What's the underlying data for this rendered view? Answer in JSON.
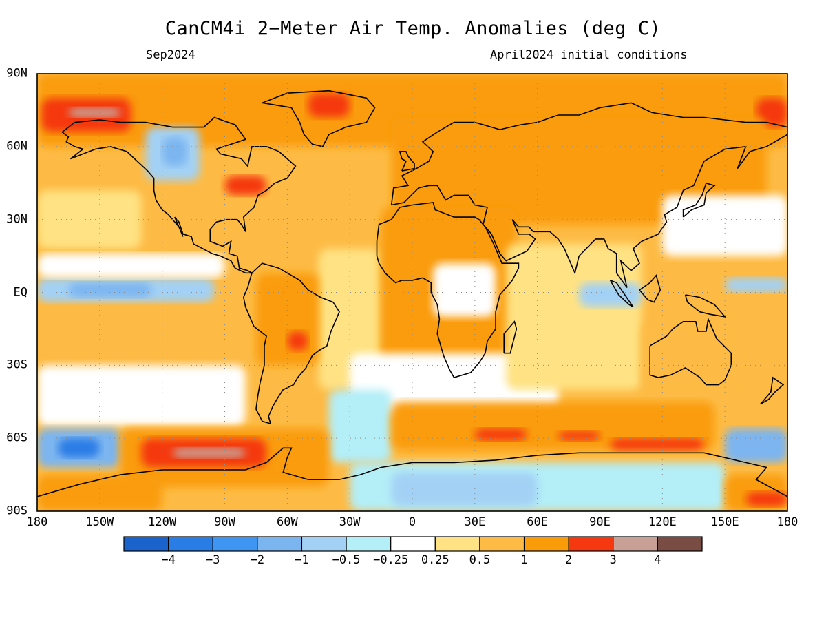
{
  "title": "CanCM4i 2−Meter Air Temp. Anomalies (deg C)",
  "subtitle_left": "Sep2024",
  "subtitle_right": "April2024 initial conditions",
  "lat_ticks": [
    "90N",
    "60N",
    "30N",
    "EQ",
    "30S",
    "60S",
    "90S"
  ],
  "lon_ticks": [
    "180",
    "150W",
    "120W",
    "90W",
    "60W",
    "30W",
    "0",
    "30E",
    "60E",
    "90E",
    "120E",
    "150E",
    "180"
  ],
  "colorbar": {
    "colors": [
      "#1a63cc",
      "#2b7de6",
      "#3f95f2",
      "#7bb5f0",
      "#a3d1f5",
      "#b4eef7",
      "#ffffff",
      "#ffe283",
      "#fdbb45",
      "#fa9c0a",
      "#f5380f",
      "#c8a095",
      "#7a4d44"
    ],
    "labels": [
      "−4",
      "−3",
      "−2",
      "−1",
      "−0.5",
      "−0.25",
      "0.25",
      "0.5",
      "1",
      "2",
      "3",
      "4"
    ]
  },
  "map": {
    "projection": "equirectangular",
    "lon_range": [
      -180,
      180
    ],
    "lat_range": [
      -90,
      90
    ],
    "grid_step_deg": 30,
    "regions": [
      {
        "name": "global-background",
        "level": 1,
        "lon": [
          -180,
          180
        ],
        "lat": [
          -90,
          90
        ]
      },
      {
        "name": "arctic-warm",
        "level": 2,
        "lon": [
          -180,
          180
        ],
        "lat": [
          60,
          90
        ]
      },
      {
        "name": "alaska-hot",
        "level": 3,
        "lon": [
          -178,
          -135
        ],
        "lat": [
          66,
          80
        ]
      },
      {
        "name": "alaska-peak",
        "level": 4,
        "lon": [
          -165,
          -140
        ],
        "lat": [
          72,
          76
        ]
      },
      {
        "name": "greenland-hot",
        "level": 3,
        "lon": [
          -50,
          -30
        ],
        "lat": [
          72,
          82
        ]
      },
      {
        "name": "east-siberia-hot",
        "level": 3,
        "lon": [
          165,
          180
        ],
        "lat": [
          68,
          80
        ]
      },
      {
        "name": "canada-cool",
        "level": -1,
        "lon": [
          -128,
          -102
        ],
        "lat": [
          46,
          68
        ]
      },
      {
        "name": "canada-cool-core",
        "level": -2,
        "lon": [
          -120,
          -108
        ],
        "lat": [
          52,
          64
        ]
      },
      {
        "name": "great-lakes-hot",
        "level": 3,
        "lon": [
          -90,
          -70
        ],
        "lat": [
          40,
          48
        ]
      },
      {
        "name": "eurasia-warm",
        "level": 2,
        "lon": [
          -10,
          170
        ],
        "lat": [
          28,
          72
        ]
      },
      {
        "name": "north-pacific-mild",
        "level": 0.5,
        "lon": [
          -180,
          -130
        ],
        "lat": [
          18,
          42
        ]
      },
      {
        "name": "tropical-atlantic-mild",
        "level": 0.5,
        "lon": [
          -45,
          -15
        ],
        "lat": [
          -40,
          18
        ]
      },
      {
        "name": "east-pacific-equator-cool",
        "level": -1,
        "lon": [
          -180,
          -95
        ],
        "lat": [
          -4,
          6
        ]
      },
      {
        "name": "east-pacific-equator-cool-core",
        "level": -2,
        "lon": [
          -165,
          -125
        ],
        "lat": [
          -2,
          4
        ]
      },
      {
        "name": "east-pacific-neutral",
        "level": 0,
        "lon": [
          -180,
          -90
        ],
        "lat": [
          6,
          16
        ]
      },
      {
        "name": "south-pacific-neutral",
        "level": 0,
        "lon": [
          -180,
          -80
        ],
        "lat": [
          -55,
          -30
        ]
      },
      {
        "name": "south-america-warm",
        "level": 2,
        "lon": [
          -75,
          -45
        ],
        "lat": [
          -30,
          8
        ]
      },
      {
        "name": "brazil-hot",
        "level": 3,
        "lon": [
          -60,
          -50
        ],
        "lat": [
          -24,
          -16
        ]
      },
      {
        "name": "africa-warm",
        "level": 2,
        "lon": [
          -15,
          50
        ],
        "lat": [
          -35,
          35
        ]
      },
      {
        "name": "central-africa-neutral",
        "level": 0,
        "lon": [
          10,
          40
        ],
        "lat": [
          -10,
          12
        ]
      },
      {
        "name": "south-atlantic-neutral",
        "level": 0,
        "lon": [
          -30,
          70
        ],
        "lat": [
          -50,
          -25
        ]
      },
      {
        "name": "south-atlantic-cool",
        "level": -0.5,
        "lon": [
          -40,
          -10
        ],
        "lat": [
          -70,
          -40
        ]
      },
      {
        "name": "indian-ocean-mild",
        "level": 0.5,
        "lon": [
          45,
          110
        ],
        "lat": [
          -40,
          20
        ]
      },
      {
        "name": "indonesia-cool",
        "level": -1,
        "lon": [
          80,
          110
        ],
        "lat": [
          -6,
          4
        ]
      },
      {
        "name": "west-pacific-equator-cool",
        "level": -1,
        "lon": [
          150,
          180
        ],
        "lat": [
          0,
          6
        ]
      },
      {
        "name": "west-pacific-neutral",
        "level": 0,
        "lon": [
          120,
          180
        ],
        "lat": [
          15,
          40
        ]
      },
      {
        "name": "australia-warm",
        "level": 1,
        "lon": [
          110,
          155
        ],
        "lat": [
          -40,
          -12
        ]
      },
      {
        "name": "southern-ocean-warm-band",
        "level": 2,
        "lon": [
          -10,
          145
        ],
        "lat": [
          -65,
          -45
        ]
      },
      {
        "name": "southern-ocean-hot-1",
        "level": 3,
        "lon": [
          30,
          55
        ],
        "lat": [
          -61,
          -56
        ]
      },
      {
        "name": "southern-ocean-hot-2",
        "level": 3,
        "lon": [
          70,
          90
        ],
        "lat": [
          -61,
          -57
        ]
      },
      {
        "name": "southern-ocean-hot-3",
        "level": 3,
        "lon": [
          95,
          140
        ],
        "lat": [
          -65,
          -60
        ]
      },
      {
        "name": "south-pacific-cold",
        "level": -2,
        "lon": [
          -180,
          -140
        ],
        "lat": [
          -72,
          -56
        ]
      },
      {
        "name": "south-pacific-cold-core",
        "level": -3,
        "lon": [
          -170,
          -150
        ],
        "lat": [
          -68,
          -60
        ]
      },
      {
        "name": "southeast-pacific-cold",
        "level": -2,
        "lon": [
          150,
          180
        ],
        "lat": [
          -70,
          -56
        ]
      },
      {
        "name": "amundsen-sea-warm",
        "level": 2,
        "lon": [
          -140,
          -40
        ],
        "lat": [
          -80,
          -56
        ]
      },
      {
        "name": "amundsen-sea-hot",
        "level": 3,
        "lon": [
          -130,
          -70
        ],
        "lat": [
          -72,
          -60
        ]
      },
      {
        "name": "amundsen-sea-peak",
        "level": 4,
        "lon": [
          -115,
          -80
        ],
        "lat": [
          -68,
          -64
        ]
      },
      {
        "name": "antarctica-cool",
        "level": -0.5,
        "lon": [
          -30,
          150
        ],
        "lat": [
          -90,
          -70
        ]
      },
      {
        "name": "antarctica-cool-core",
        "level": -1,
        "lon": [
          -10,
          60
        ],
        "lat": [
          -88,
          -74
        ]
      },
      {
        "name": "ross-sea-warm",
        "level": 2,
        "lon": [
          -180,
          -120
        ],
        "lat": [
          -90,
          -75
        ]
      },
      {
        "name": "ross-sea-east-warm",
        "level": 2,
        "lon": [
          150,
          180
        ],
        "lat": [
          -90,
          -75
        ]
      },
      {
        "name": "ross-sea-east-hot",
        "level": 3,
        "lon": [
          160,
          180
        ],
        "lat": [
          -88,
          -82
        ]
      }
    ],
    "level_colors": {
      "-3": "#2b7de6",
      "-2": "#7bb5f0",
      "-1": "#a3d1f5",
      "-0.5": "#b4eef7",
      "0": "#ffffff",
      "0.5": "#ffe283",
      "1": "#fdbb45",
      "2": "#fa9c0a",
      "3": "#f5380f",
      "4": "#c8a095"
    }
  }
}
